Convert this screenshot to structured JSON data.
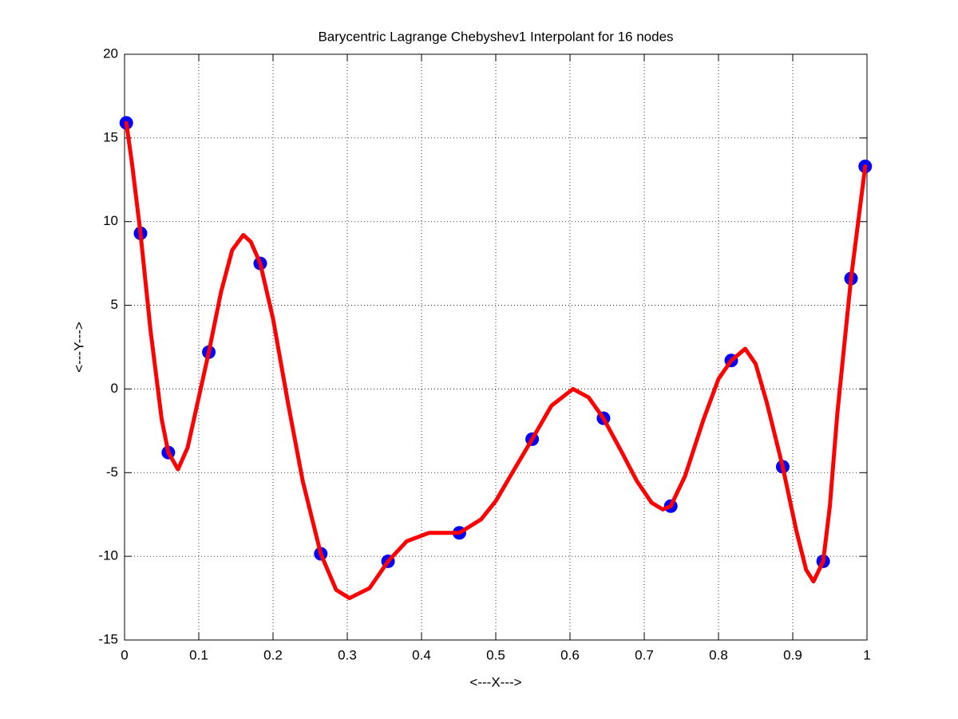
{
  "chart_data": {
    "type": "line",
    "title": "Barycentric Lagrange Chebyshev1 Interpolant for 16 nodes",
    "xlabel": "<---X--->",
    "ylabel": "<---Y--->",
    "xlim": [
      0,
      1
    ],
    "ylim": [
      -15,
      20
    ],
    "xticks": [
      0,
      0.1,
      0.2,
      0.3,
      0.4,
      0.5,
      0.6,
      0.7,
      0.8,
      0.9,
      1
    ],
    "yticks": [
      -15,
      -10,
      -5,
      0,
      5,
      10,
      15,
      20
    ],
    "grid": true,
    "series": [
      {
        "type": "scatter",
        "color": "#0000ff",
        "x": [
          0.0024,
          0.0215,
          0.059,
          0.1135,
          0.1828,
          0.2643,
          0.3549,
          0.451,
          0.549,
          0.6451,
          0.7357,
          0.8172,
          0.8865,
          0.941,
          0.9785,
          0.9976
        ],
        "values": [
          15.9,
          9.3,
          -3.8,
          2.2,
          7.5,
          -9.85,
          -10.3,
          -8.6,
          -3.0,
          -1.75,
          -7.0,
          1.7,
          -4.65,
          -10.3,
          6.6,
          13.3
        ]
      },
      {
        "type": "line",
        "color": "#ff0000",
        "x": [
          0.0024,
          0.01,
          0.0215,
          0.035,
          0.05,
          0.059,
          0.072,
          0.085,
          0.1,
          0.1135,
          0.13,
          0.145,
          0.16,
          0.17,
          0.1828,
          0.2,
          0.22,
          0.24,
          0.2643,
          0.285,
          0.303,
          0.33,
          0.3549,
          0.38,
          0.41,
          0.43,
          0.451,
          0.48,
          0.5,
          0.525,
          0.549,
          0.575,
          0.604,
          0.625,
          0.645,
          0.67,
          0.69,
          0.71,
          0.725,
          0.7357,
          0.755,
          0.78,
          0.8,
          0.8172,
          0.836,
          0.85,
          0.865,
          0.8865,
          0.905,
          0.918,
          0.928,
          0.941,
          0.95,
          0.96,
          0.9785,
          0.9976
        ],
        "values": [
          15.9,
          13.5,
          9.3,
          3.5,
          -1.8,
          -3.8,
          -4.8,
          -3.5,
          -0.5,
          2.2,
          5.8,
          8.3,
          9.2,
          8.8,
          7.5,
          4.2,
          -0.8,
          -5.5,
          -9.85,
          -12.0,
          -12.5,
          -11.9,
          -10.3,
          -9.1,
          -8.6,
          -8.6,
          -8.6,
          -7.8,
          -6.7,
          -4.8,
          -3.0,
          -1.0,
          0,
          -0.5,
          -1.75,
          -3.8,
          -5.5,
          -6.8,
          -7.2,
          -7.0,
          -5.2,
          -1.8,
          0.6,
          1.7,
          2.4,
          1.5,
          -0.8,
          -4.65,
          -8.5,
          -10.8,
          -11.5,
          -10.3,
          -7,
          -1.5,
          6.6,
          13.3
        ]
      }
    ]
  }
}
